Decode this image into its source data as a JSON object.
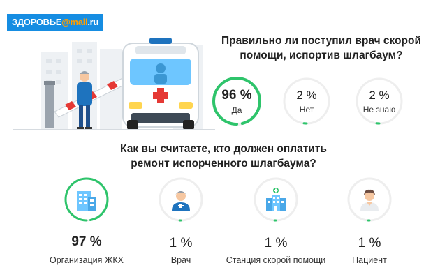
{
  "logo": {
    "part1": "ЗДОРОВЬЕ",
    "part2": "@mail",
    "part3": ".ru"
  },
  "poll1": {
    "question_line1": "Правильно ли поступил врач скорой",
    "question_line2": "помощи, испортив шлагбаум?",
    "options": [
      {
        "percent": "96 %",
        "label": "Да",
        "value": 96
      },
      {
        "percent": "2 %",
        "label": "Нет",
        "value": 2
      },
      {
        "percent": "2 %",
        "label": "Не знаю",
        "value": 2
      }
    ]
  },
  "poll2": {
    "question_line1": "Как вы считаете, кто должен оплатить",
    "question_line2": "ремонт испорченного шлагбаума?",
    "options": [
      {
        "percent": "97 %",
        "label": "Организация ЖКХ",
        "icon": "building-icon",
        "value": 97
      },
      {
        "percent": "1 %",
        "label": "Врач",
        "icon": "doctor-icon",
        "value": 1
      },
      {
        "percent": "1 %",
        "label": "Станция скорой помощи",
        "icon": "hospital-icon",
        "value": 1
      },
      {
        "percent": "1 %",
        "label": "Пациент",
        "icon": "patient-icon",
        "value": 1
      }
    ]
  },
  "colors": {
    "accent": "#2ec46b",
    "ring_bg": "#eeeeee",
    "brand_blue": "#168de2",
    "brand_orange": "#ff9e00"
  }
}
